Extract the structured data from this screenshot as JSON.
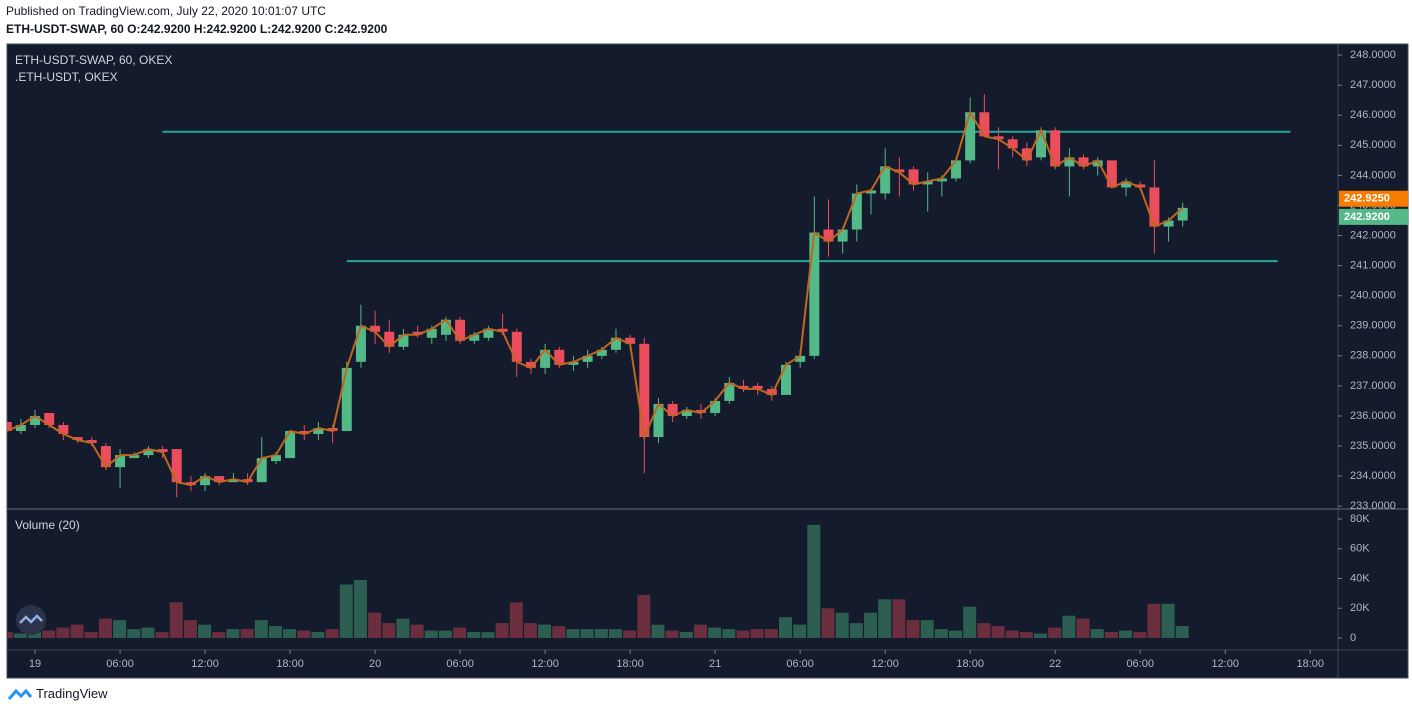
{
  "chart_data": {
    "type": "candlestick",
    "published": "Published on TradingView.com, July 22, 2020 10:01:07 UTC",
    "header": "ETH-USDT-SWAP, 60 O:242.9200 H:242.9200 L:242.9200 C:242.9200",
    "footer": "TradingView",
    "x": [
      -2,
      -1,
      0,
      1,
      2,
      3,
      4,
      5,
      6,
      7,
      8,
      9,
      10,
      11,
      12,
      13,
      14,
      15,
      16,
      17,
      18,
      19,
      20,
      21,
      22,
      23,
      24,
      25,
      26,
      27,
      28,
      29,
      30,
      31,
      32,
      33,
      34,
      35,
      36,
      37,
      38,
      39,
      40,
      41,
      42,
      43,
      44,
      45,
      46,
      47,
      48,
      49,
      50,
      51,
      52,
      53,
      54,
      55,
      56,
      57,
      58,
      59,
      60,
      61,
      62,
      63,
      64,
      65,
      66,
      67,
      68,
      69,
      70,
      71,
      72,
      73,
      74,
      75,
      76,
      77,
      78,
      79,
      80,
      81
    ],
    "xlim": [
      -1.98,
      91.96
    ],
    "xticks": [
      {
        "value": 0,
        "label": "19"
      },
      {
        "value": 6,
        "label": "06:00"
      },
      {
        "value": 12,
        "label": "12:00"
      },
      {
        "value": 18,
        "label": "18:00"
      },
      {
        "value": 24,
        "label": "20"
      },
      {
        "value": 30,
        "label": "06:00"
      },
      {
        "value": 36,
        "label": "12:00"
      },
      {
        "value": 42,
        "label": "18:00"
      },
      {
        "value": 48,
        "label": "21"
      },
      {
        "value": 54,
        "label": "06:00"
      },
      {
        "value": 60,
        "label": "12:00"
      },
      {
        "value": 66,
        "label": "18:00"
      },
      {
        "value": 72,
        "label": "22"
      },
      {
        "value": 78,
        "label": "06:00"
      },
      {
        "value": 84,
        "label": "12:00"
      },
      {
        "value": 90,
        "label": "18:00"
      }
    ],
    "ylim": [
      232.94,
      248.37
    ],
    "yticks": [
      {
        "value": 233,
        "label": "233.0000"
      },
      {
        "value": 234,
        "label": "234.0000"
      },
      {
        "value": 235,
        "label": "235.0000"
      },
      {
        "value": 236,
        "label": "236.0000"
      },
      {
        "value": 237,
        "label": "237.0000"
      },
      {
        "value": 238,
        "label": "238.0000"
      },
      {
        "value": 239,
        "label": "239.0000"
      },
      {
        "value": 240,
        "label": "240.0000"
      },
      {
        "value": 241,
        "label": "241.0000"
      },
      {
        "value": 242,
        "label": "242.0000"
      },
      {
        "value": 243,
        "label": "243.0000"
      },
      {
        "value": 244,
        "label": "244.0000"
      },
      {
        "value": 245,
        "label": "245.0000"
      },
      {
        "value": 246,
        "label": "246.0000"
      },
      {
        "value": 247,
        "label": "247.0000"
      },
      {
        "value": 248,
        "label": "248.0000"
      }
    ],
    "series": [
      {
        "name": "ETH-USDT-SWAP, 60, OKEX",
        "up_color": "#53b987",
        "down_color": "#eb4d5c",
        "open": [
          235.8,
          235.5,
          235.7,
          236.1,
          235.7,
          235.3,
          235.2,
          235.0,
          234.3,
          234.6,
          234.7,
          234.9,
          234.9,
          233.8,
          233.7,
          234.0,
          233.8,
          233.9,
          233.8,
          234.5,
          234.6,
          235.5,
          235.4,
          235.6,
          235.5,
          237.8,
          239.0,
          238.8,
          238.3,
          238.8,
          238.6,
          238.7,
          239.2,
          238.5,
          238.6,
          238.9,
          238.8,
          237.8,
          237.6,
          238.2,
          237.7,
          237.8,
          238.0,
          238.2,
          238.6,
          238.4,
          235.3,
          236.4,
          236.0,
          236.2,
          236.1,
          236.5,
          237.0,
          237.0,
          236.9,
          236.7,
          237.8,
          238.0,
          242.2,
          241.8,
          242.2,
          243.4,
          243.4,
          244.2,
          244.2,
          243.7,
          243.8,
          243.9,
          244.5,
          246.1,
          245.3,
          245.2,
          244.9,
          244.6,
          245.5,
          244.3,
          244.6,
          244.3,
          244.5,
          243.6,
          243.7,
          243.6,
          242.3,
          242.5
        ],
        "high": [
          236.0,
          235.9,
          236.2,
          236.1,
          235.8,
          235.3,
          235.3,
          235.1,
          234.9,
          234.8,
          235.0,
          235.0,
          234.9,
          234.0,
          234.1,
          234.0,
          234.1,
          234.1,
          235.3,
          234.8,
          235.5,
          235.7,
          235.8,
          235.7,
          237.8,
          239.7,
          239.5,
          239.2,
          238.9,
          239.0,
          239.0,
          239.3,
          239.3,
          238.8,
          239.0,
          239.4,
          238.9,
          237.9,
          238.4,
          238.3,
          238.0,
          238.2,
          238.3,
          238.9,
          238.7,
          238.6,
          236.6,
          236.5,
          236.3,
          236.4,
          236.6,
          237.3,
          237.2,
          237.1,
          237.0,
          237.8,
          238.2,
          243.3,
          243.2,
          242.2,
          243.7,
          243.5,
          244.9,
          244.6,
          244.3,
          244.1,
          244.0,
          244.6,
          246.6,
          246.7,
          245.6,
          245.3,
          245.1,
          245.6,
          245.6,
          244.9,
          244.7,
          244.6,
          244.5,
          243.9,
          243.8,
          244.5,
          242.6,
          243.1
        ],
        "low": [
          235.4,
          235.4,
          235.6,
          235.6,
          235.2,
          235.1,
          235.0,
          234.2,
          233.6,
          234.6,
          234.6,
          234.6,
          233.3,
          233.5,
          233.5,
          233.7,
          233.8,
          233.7,
          233.8,
          234.4,
          234.6,
          235.2,
          235.2,
          235.1,
          235.5,
          237.6,
          238.4,
          238.1,
          238.2,
          238.6,
          238.4,
          238.5,
          238.4,
          238.4,
          238.5,
          238.7,
          237.3,
          237.4,
          237.4,
          237.6,
          237.5,
          237.6,
          237.9,
          238.1,
          238.2,
          234.1,
          235.1,
          235.8,
          235.9,
          235.9,
          236.0,
          236.4,
          236.8,
          236.7,
          236.5,
          236.7,
          237.6,
          237.9,
          241.3,
          241.4,
          241.8,
          242.7,
          243.2,
          243.3,
          243.5,
          242.8,
          243.3,
          243.8,
          244.4,
          245.3,
          244.2,
          244.6,
          244.3,
          244.5,
          244.2,
          243.3,
          244.2,
          244.0,
          243.6,
          243.3,
          243.5,
          241.4,
          241.8,
          242.3
        ],
        "close": [
          235.5,
          235.7,
          236.0,
          235.7,
          235.4,
          235.2,
          235.1,
          234.3,
          234.7,
          234.7,
          234.9,
          234.8,
          233.8,
          233.7,
          234.0,
          233.8,
          233.9,
          233.8,
          234.6,
          234.7,
          235.5,
          235.4,
          235.6,
          235.5,
          237.6,
          239.0,
          238.8,
          238.3,
          238.7,
          238.7,
          238.9,
          239.2,
          238.5,
          238.7,
          238.9,
          238.8,
          237.8,
          237.6,
          238.2,
          237.7,
          237.8,
          238.0,
          238.2,
          238.6,
          238.4,
          235.3,
          236.4,
          236.0,
          236.2,
          236.1,
          236.5,
          237.1,
          236.9,
          236.9,
          236.7,
          237.7,
          238.0,
          242.1,
          241.8,
          242.2,
          243.4,
          243.5,
          244.3,
          244.1,
          243.7,
          243.8,
          243.9,
          244.5,
          246.1,
          245.3,
          245.2,
          244.9,
          244.5,
          245.5,
          244.3,
          244.6,
          244.3,
          244.5,
          243.6,
          243.8,
          243.6,
          242.3,
          242.5,
          242.92
        ]
      },
      {
        "name": ".ETH-USDT, OKEX",
        "color": "#c0671f"
      }
    ],
    "hlines": [
      {
        "value": 245.45,
        "x": [
          9,
          88.6
        ],
        "color": "#26a69a"
      },
      {
        "value": 241.15,
        "x": [
          22,
          87.7
        ],
        "color": "#26a69a"
      }
    ],
    "price_labels": [
      {
        "value": 242.925,
        "label": "242.9250",
        "color": "#f57c00"
      },
      {
        "value": 242.92,
        "label": "242.9200",
        "color": "#53b987"
      }
    ],
    "volume": {
      "title": "Volume (20)",
      "up_color": "#2c5e51",
      "down_color": "#6a2e3e",
      "values": [
        4000,
        3000,
        4000,
        5000,
        7000,
        9000,
        4000,
        13000,
        12000,
        6000,
        7000,
        4000,
        24000,
        12000,
        9000,
        4000,
        6000,
        6000,
        12000,
        8000,
        6000,
        5000,
        4000,
        6000,
        36000,
        39000,
        17000,
        10000,
        13000,
        9000,
        5000,
        5000,
        7000,
        4000,
        4000,
        10000,
        24000,
        10000,
        9000,
        8000,
        6000,
        6000,
        6000,
        6000,
        5000,
        29000,
        9000,
        5000,
        4000,
        9000,
        7000,
        6000,
        5000,
        6000,
        6000,
        14000,
        9000,
        76000,
        20000,
        17000,
        10000,
        17000,
        26000,
        26000,
        12000,
        12000,
        6000,
        5000,
        21000,
        10000,
        8000,
        5000,
        4000,
        3000,
        7000,
        15000,
        13000,
        6000,
        4000,
        5000,
        4000,
        23000,
        23000,
        8000
      ],
      "ylim": [
        -8070,
        86050
      ],
      "yticks": [
        0,
        {
          "value": 20000,
          "label": "20K"
        },
        {
          "value": 40000,
          "label": "40K"
        },
        {
          "value": 60000,
          "label": "60K"
        },
        {
          "value": 80000,
          "label": "80K"
        }
      ]
    }
  }
}
